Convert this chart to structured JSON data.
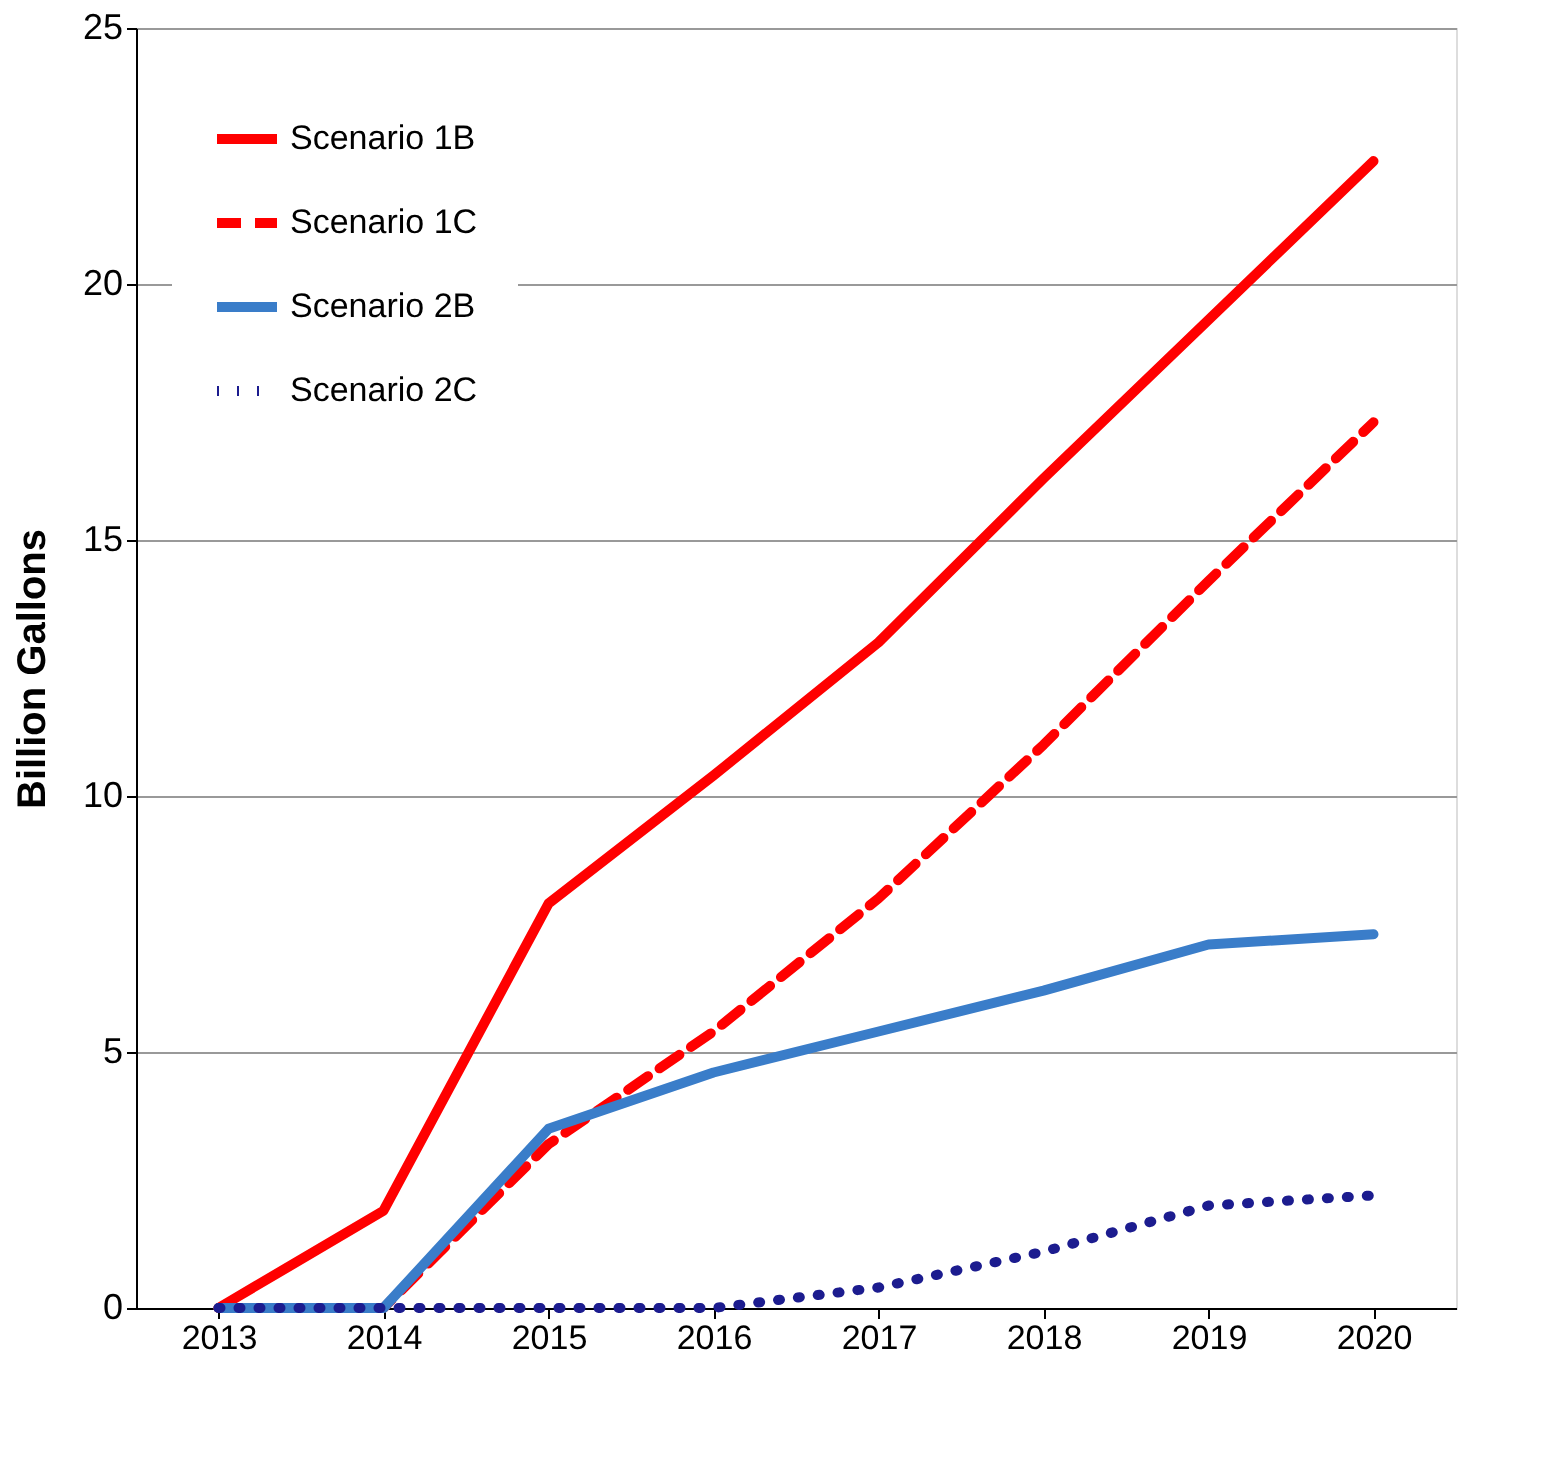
{
  "chart_data": {
    "type": "line",
    "ylabel": "Billion Gallons",
    "categories": [
      "2013",
      "2014",
      "2015",
      "2016",
      "2017",
      "2018",
      "2019",
      "2020"
    ],
    "series": [
      {
        "name": "Scenario 1B",
        "color": "#ff0000",
        "line_style": "solid",
        "values": [
          0,
          1.9,
          7.9,
          10.4,
          13.0,
          16.2,
          19.3,
          22.4
        ]
      },
      {
        "name": "Scenario 1C",
        "color": "#ff0000",
        "line_style": "dashed",
        "values": [
          0,
          0,
          3.2,
          5.4,
          8.0,
          11.0,
          14.2,
          17.3
        ]
      },
      {
        "name": "Scenario 2B",
        "color": "#3a7dc9",
        "line_style": "solid",
        "values": [
          0,
          0,
          3.5,
          4.6,
          5.4,
          6.2,
          7.1,
          7.3
        ]
      },
      {
        "name": "Scenario 2C",
        "color": "#1c1c8f",
        "line_style": "dotted",
        "values": [
          0,
          0,
          0,
          0,
          0.4,
          1.1,
          2.0,
          2.2
        ]
      }
    ],
    "ylim": [
      0,
      25
    ],
    "yticks": [
      0,
      5,
      10,
      15,
      20,
      25
    ],
    "grid": "y",
    "legend": "top left",
    "marker": "none"
  }
}
